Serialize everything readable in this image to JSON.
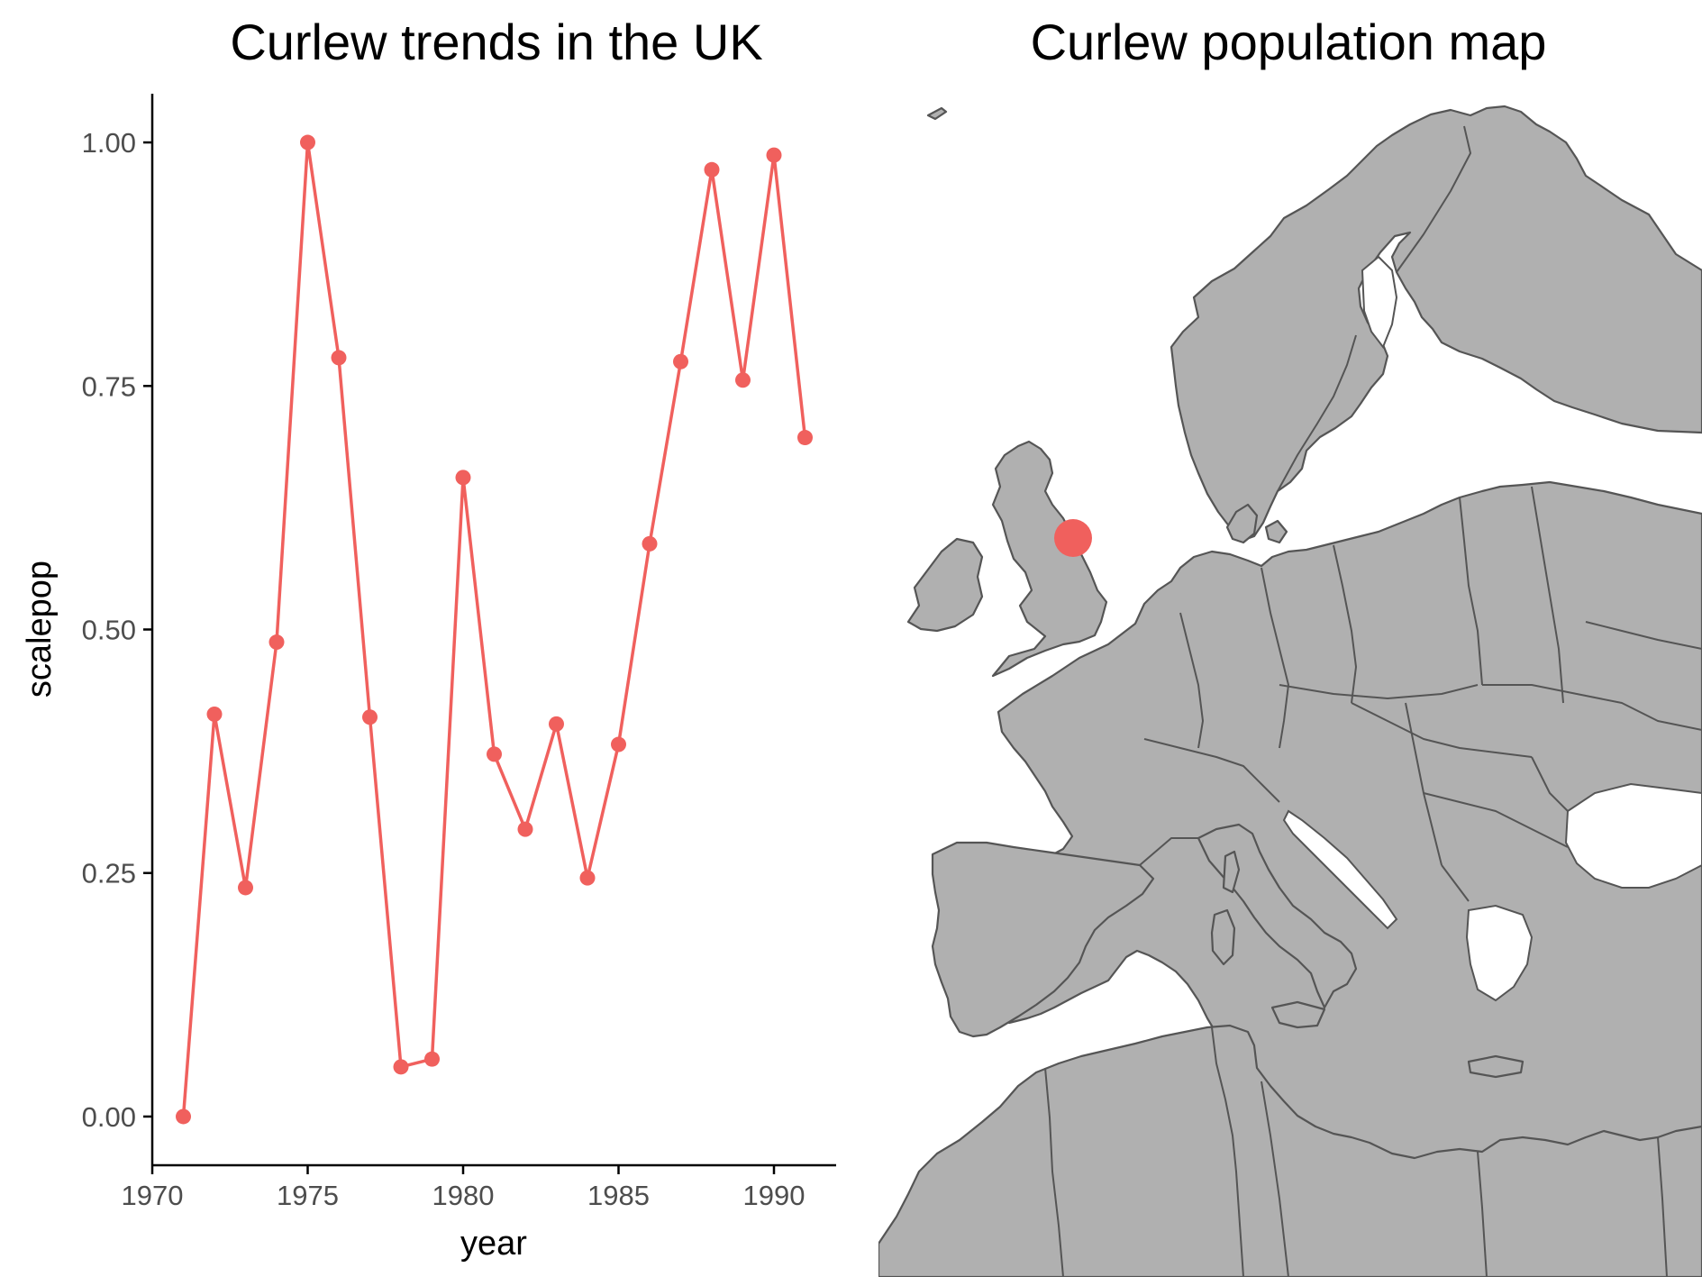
{
  "colors": {
    "series": "#F0605D",
    "land": "#b0b0b0",
    "outline": "#555555",
    "axis": "#000000",
    "tick_text": "#4d4d4d"
  },
  "chart_data": [
    {
      "type": "line",
      "title": "Curlew trends in the UK",
      "xlabel": "year",
      "ylabel": "scalepop",
      "xlim": [
        1970,
        1992
      ],
      "ylim": [
        -0.05,
        1.05
      ],
      "xticks": [
        1970,
        1975,
        1980,
        1985,
        1990
      ],
      "yticks": [
        0.0,
        0.25,
        0.5,
        0.75,
        1.0
      ],
      "xtick_labels": [
        "1970",
        "1975",
        "1980",
        "1985",
        "1990"
      ],
      "ytick_labels": [
        "0.00",
        "0.25",
        "0.50",
        "0.75",
        "1.00"
      ],
      "grid": false,
      "markers": true,
      "x": [
        1971,
        1972,
        1973,
        1974,
        1975,
        1976,
        1977,
        1978,
        1979,
        1980,
        1981,
        1982,
        1983,
        1984,
        1985,
        1986,
        1987,
        1988,
        1989,
        1990,
        1991
      ],
      "y": [
        0.0,
        0.413,
        0.235,
        0.487,
        1.0,
        0.779,
        0.41,
        0.051,
        0.059,
        0.656,
        0.372,
        0.295,
        0.403,
        0.245,
        0.382,
        0.588,
        0.775,
        0.972,
        0.756,
        0.987,
        0.697
      ]
    },
    {
      "type": "map",
      "title": "Curlew population map",
      "region": "Europe and the Mediterranean",
      "points": [
        {
          "lon": -1.6,
          "lat": 54.9
        }
      ]
    }
  ]
}
